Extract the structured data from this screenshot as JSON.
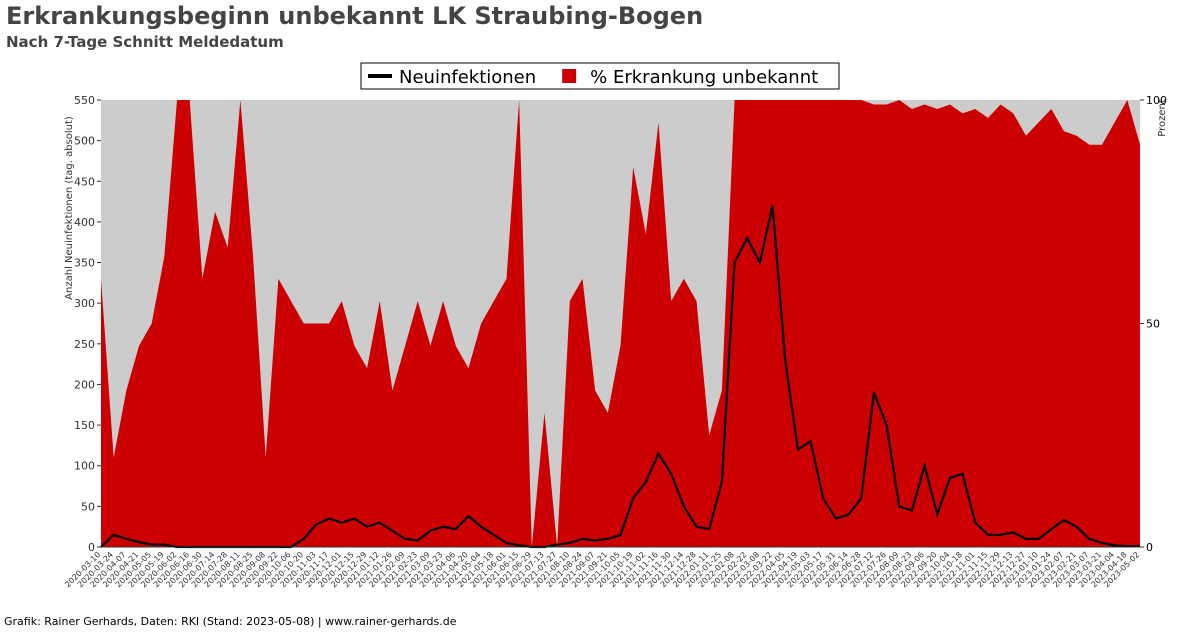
{
  "chart_data": {
    "type": "line-area",
    "title": "Erkrankungsbeginn unbekannt LK Straubing-Bogen",
    "subtitle": "Nach 7-Tage Schnitt Meldedatum",
    "footer": "Grafik: Rainer Gerhards, Daten: RKI (Stand: 2023-05-08) | www.rainer-gerhards.de",
    "ylabel": "Anzahl Neuinfektionen (tag. absolut)",
    "y2label": "Prozent",
    "legend": "top-center",
    "background": "#cccccc",
    "categories": [
      "2020-03-10",
      "2020-03-24",
      "2020-04-07",
      "2020-04-21",
      "2020-05-05",
      "2020-05-19",
      "2020-06-02",
      "2020-06-16",
      "2020-06-30",
      "2020-07-14",
      "2020-07-28",
      "2020-08-11",
      "2020-08-25",
      "2020-09-08",
      "2020-09-22",
      "2020-10-06",
      "2020-10-20",
      "2020-11-03",
      "2020-11-17",
      "2020-12-01",
      "2020-12-15",
      "2020-12-29",
      "2021-01-12",
      "2021-01-26",
      "2021-02-09",
      "2021-02-23",
      "2021-03-09",
      "2021-03-23",
      "2021-04-06",
      "2021-04-20",
      "2021-05-04",
      "2021-05-18",
      "2021-06-01",
      "2021-06-15",
      "2021-06-29",
      "2021-07-13",
      "2021-07-27",
      "2021-08-10",
      "2021-08-24",
      "2021-09-07",
      "2021-09-21",
      "2021-10-05",
      "2021-10-19",
      "2021-11-02",
      "2021-11-16",
      "2021-11-30",
      "2021-12-14",
      "2021-12-28",
      "2022-01-11",
      "2022-01-25",
      "2022-02-08",
      "2022-02-22",
      "2022-03-08",
      "2022-03-22",
      "2022-04-05",
      "2022-04-19",
      "2022-05-03",
      "2022-05-17",
      "2022-05-31",
      "2022-06-14",
      "2022-06-28",
      "2022-07-12",
      "2022-07-26",
      "2022-08-09",
      "2022-08-23",
      "2022-09-06",
      "2022-09-20",
      "2022-10-04",
      "2022-10-18",
      "2022-11-01",
      "2022-11-15",
      "2022-11-29",
      "2022-12-13",
      "2022-12-27",
      "2023-01-10",
      "2023-01-24",
      "2023-02-07",
      "2023-02-21",
      "2023-03-07",
      "2023-03-21",
      "2023-04-04",
      "2023-04-18",
      "2023-05-02"
    ],
    "series": [
      {
        "name": "% Erkrankung unbekannt",
        "color": "#cc0000",
        "axis": "y2",
        "values": [
          60,
          20,
          35,
          45,
          50,
          65,
          100,
          100,
          60,
          75,
          67,
          100,
          65,
          20,
          60,
          55,
          50,
          50,
          50,
          55,
          45,
          40,
          55,
          35,
          45,
          55,
          45,
          55,
          45,
          40,
          50,
          55,
          60,
          100,
          0,
          30,
          0,
          55,
          60,
          35,
          30,
          45,
          85,
          70,
          95,
          55,
          60,
          55,
          25,
          35,
          100,
          100,
          100,
          100,
          100,
          100,
          100,
          100,
          100,
          100,
          100,
          99,
          99,
          100,
          98,
          99,
          98,
          99,
          97,
          98,
          96,
          99,
          97,
          92,
          95,
          98,
          93,
          92,
          90,
          90,
          95,
          100,
          90
        ]
      },
      {
        "name": "Neuinfektionen",
        "color": "#000000",
        "values": [
          0,
          15,
          10,
          6,
          3,
          3,
          0,
          0,
          0,
          0,
          0,
          0,
          0,
          0,
          0,
          0,
          10,
          28,
          35,
          30,
          35,
          25,
          30,
          20,
          10,
          8,
          20,
          25,
          22,
          38,
          25,
          15,
          5,
          2,
          0,
          0,
          3,
          5,
          10,
          8,
          10,
          15,
          60,
          80,
          115,
          90,
          50,
          25,
          22,
          80,
          350,
          380,
          350,
          420,
          230,
          120,
          130,
          60,
          35,
          40,
          60,
          190,
          150,
          50,
          45,
          100,
          40,
          85,
          90,
          30,
          15,
          15,
          18,
          10,
          10,
          22,
          33,
          25,
          10,
          5,
          2,
          1,
          1
        ]
      }
    ],
    "ylim": [
      0,
      550
    ],
    "yticks": [
      0,
      50,
      100,
      150,
      200,
      250,
      300,
      350,
      400,
      450,
      500,
      550
    ],
    "y2lim": [
      0,
      100
    ],
    "y2ticks": [
      0,
      50,
      100
    ]
  }
}
